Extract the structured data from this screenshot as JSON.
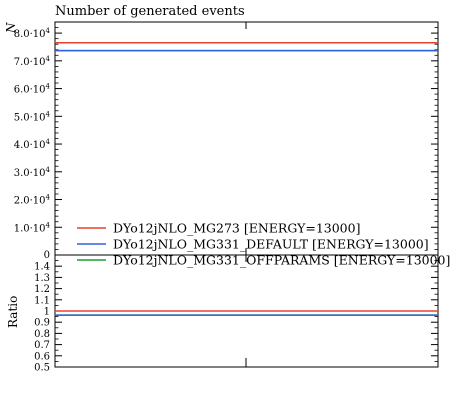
{
  "chart_data": [
    {
      "type": "line",
      "title": "Number of generated events",
      "ylabel": "N",
      "xlabel": "",
      "ylim": [
        0,
        84000
      ],
      "yticks": [
        {
          "v": 10000,
          "m": "1.0",
          "e": "4"
        },
        {
          "v": 20000,
          "m": "2.0",
          "e": "4"
        },
        {
          "v": 30000,
          "m": "3.0",
          "e": "4"
        },
        {
          "v": 40000,
          "m": "4.0",
          "e": "4"
        },
        {
          "v": 50000,
          "m": "5.0",
          "e": "4"
        },
        {
          "v": 60000,
          "m": "6.0",
          "e": "4"
        },
        {
          "v": 70000,
          "m": "7.0",
          "e": "4"
        },
        {
          "v": 80000,
          "m": "8.0",
          "e": "4"
        }
      ],
      "legend_position": "bottom-left",
      "series": [
        {
          "name": "DYo12jNLO_MG273 [ENERGY=13000]",
          "color": "#e8432a",
          "value": 76500
        },
        {
          "name": "DYo12jNLO_MG331_DEFAULT [ENERGY=13000]",
          "color": "#2f63d9",
          "value": 73700
        },
        {
          "name": "DYo12jNLO_MG331_OFFPARAMS [ENERGY=13000]",
          "color": "#1d9e2c",
          "value": 73700
        }
      ]
    },
    {
      "type": "line",
      "ylabel": "Ratio",
      "xlabel": "",
      "ylim": [
        0.5,
        1.5
      ],
      "yticks": [
        "0.5",
        "0.6",
        "0.7",
        "0.8",
        "0.9",
        "1",
        "1.1",
        "1.2",
        "1.3",
        "1.4"
      ],
      "series": [
        {
          "name": "DYo12jNLO_MG273 [ENERGY=13000]",
          "color": "#e8432a",
          "value": 1.0
        },
        {
          "name": "DYo12jNLO_MG331_DEFAULT [ENERGY=13000]",
          "color": "#2f63d9",
          "value": 0.963
        },
        {
          "name": "DYo12jNLO_MG331_OFFPARAMS [ENERGY=13000]",
          "color": "#1d9e2c",
          "value": 0.963
        }
      ]
    }
  ],
  "main_zero_label": "0",
  "colors": {
    "frame": "#000000",
    "background": "#ffffff"
  }
}
